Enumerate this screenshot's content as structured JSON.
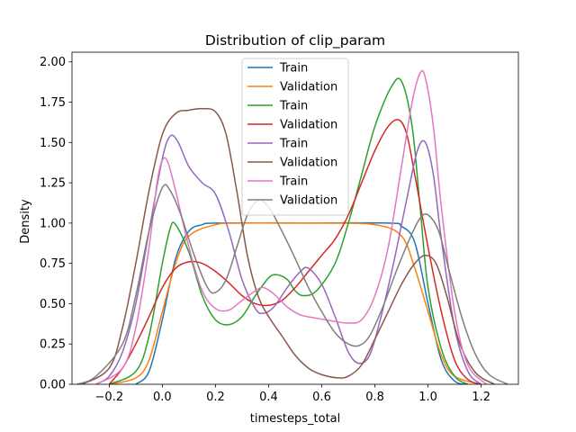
{
  "chart_data": {
    "type": "line",
    "title": "Distribution of clip_param",
    "xlabel": "timesteps_total",
    "ylabel": "Density",
    "xlim": [
      -0.34,
      1.34
    ],
    "ylim": [
      0,
      2.06
    ],
    "xticks": [
      "−0.2",
      "0.0",
      "0.2",
      "0.4",
      "0.6",
      "0.8",
      "1.0",
      "1.2"
    ],
    "xtick_values": [
      -0.2,
      0.0,
      0.2,
      0.4,
      0.6,
      0.8,
      1.0,
      1.2
    ],
    "yticks": [
      "0.00",
      "0.25",
      "0.50",
      "0.75",
      "1.00",
      "1.25",
      "1.50",
      "1.75",
      "2.00"
    ],
    "ytick_values": [
      0,
      0.25,
      0.5,
      0.75,
      1.0,
      1.25,
      1.5,
      1.75,
      2.0
    ],
    "grid": false,
    "legend_position": "top-center",
    "series": [
      {
        "name": "Train",
        "color": "#1f77b4",
        "points": [
          [
            -0.1,
            0.0
          ],
          [
            -0.05,
            0.08
          ],
          [
            0.0,
            0.4
          ],
          [
            0.05,
            0.78
          ],
          [
            0.1,
            0.95
          ],
          [
            0.15,
            0.99
          ],
          [
            0.2,
            1.0
          ],
          [
            0.5,
            1.0
          ],
          [
            0.85,
            1.0
          ],
          [
            0.9,
            0.98
          ],
          [
            0.95,
            0.88
          ],
          [
            1.0,
            0.5
          ],
          [
            1.05,
            0.15
          ],
          [
            1.1,
            0.02
          ],
          [
            1.15,
            0.0
          ]
        ]
      },
      {
        "name": "Validation",
        "color": "#ff7f0e",
        "points": [
          [
            -0.2,
            0.0
          ],
          [
            -0.1,
            0.04
          ],
          [
            -0.05,
            0.15
          ],
          [
            0.0,
            0.45
          ],
          [
            0.05,
            0.75
          ],
          [
            0.1,
            0.92
          ],
          [
            0.2,
            0.99
          ],
          [
            0.3,
            1.0
          ],
          [
            0.6,
            1.0
          ],
          [
            0.8,
            0.99
          ],
          [
            0.9,
            0.92
          ],
          [
            0.95,
            0.72
          ],
          [
            1.0,
            0.45
          ],
          [
            1.05,
            0.18
          ],
          [
            1.1,
            0.05
          ],
          [
            1.2,
            0.0
          ]
        ]
      },
      {
        "name": "Train",
        "color": "#2ca02c",
        "points": [
          [
            -0.2,
            0.0
          ],
          [
            -0.1,
            0.08
          ],
          [
            -0.05,
            0.3
          ],
          [
            0.0,
            0.75
          ],
          [
            0.03,
            0.97
          ],
          [
            0.05,
            0.99
          ],
          [
            0.1,
            0.82
          ],
          [
            0.15,
            0.55
          ],
          [
            0.2,
            0.4
          ],
          [
            0.25,
            0.37
          ],
          [
            0.3,
            0.42
          ],
          [
            0.35,
            0.55
          ],
          [
            0.4,
            0.66
          ],
          [
            0.43,
            0.68
          ],
          [
            0.47,
            0.65
          ],
          [
            0.5,
            0.58
          ],
          [
            0.53,
            0.55
          ],
          [
            0.58,
            0.58
          ],
          [
            0.65,
            0.75
          ],
          [
            0.7,
            1.0
          ],
          [
            0.75,
            1.3
          ],
          [
            0.8,
            1.6
          ],
          [
            0.86,
            1.84
          ],
          [
            0.9,
            1.88
          ],
          [
            0.94,
            1.6
          ],
          [
            0.97,
            1.1
          ],
          [
            1.0,
            0.6
          ],
          [
            1.05,
            0.22
          ],
          [
            1.1,
            0.05
          ],
          [
            1.15,
            0.0
          ]
        ]
      },
      {
        "name": "Validation",
        "color": "#d62728",
        "points": [
          [
            -0.2,
            0.0
          ],
          [
            -0.15,
            0.1
          ],
          [
            -0.1,
            0.25
          ],
          [
            -0.05,
            0.42
          ],
          [
            0.0,
            0.6
          ],
          [
            0.05,
            0.72
          ],
          [
            0.1,
            0.76
          ],
          [
            0.15,
            0.75
          ],
          [
            0.2,
            0.7
          ],
          [
            0.25,
            0.63
          ],
          [
            0.3,
            0.55
          ],
          [
            0.35,
            0.5
          ],
          [
            0.4,
            0.49
          ],
          [
            0.45,
            0.52
          ],
          [
            0.5,
            0.6
          ],
          [
            0.55,
            0.7
          ],
          [
            0.6,
            0.8
          ],
          [
            0.65,
            0.9
          ],
          [
            0.7,
            1.05
          ],
          [
            0.75,
            1.25
          ],
          [
            0.8,
            1.45
          ],
          [
            0.85,
            1.6
          ],
          [
            0.89,
            1.64
          ],
          [
            0.92,
            1.55
          ],
          [
            0.95,
            1.3
          ],
          [
            1.0,
            0.85
          ],
          [
            1.05,
            0.45
          ],
          [
            1.1,
            0.15
          ],
          [
            1.15,
            0.03
          ],
          [
            1.2,
            0.0
          ]
        ]
      },
      {
        "name": "Train",
        "color": "#9467bd",
        "points": [
          [
            -0.25,
            0.0
          ],
          [
            -0.2,
            0.05
          ],
          [
            -0.15,
            0.2
          ],
          [
            -0.1,
            0.5
          ],
          [
            -0.05,
            0.95
          ],
          [
            0.0,
            1.4
          ],
          [
            0.03,
            1.54
          ],
          [
            0.06,
            1.5
          ],
          [
            0.1,
            1.35
          ],
          [
            0.15,
            1.25
          ],
          [
            0.2,
            1.18
          ],
          [
            0.25,
            0.95
          ],
          [
            0.3,
            0.65
          ],
          [
            0.35,
            0.47
          ],
          [
            0.38,
            0.44
          ],
          [
            0.42,
            0.48
          ],
          [
            0.47,
            0.6
          ],
          [
            0.52,
            0.7
          ],
          [
            0.55,
            0.72
          ],
          [
            0.6,
            0.62
          ],
          [
            0.65,
            0.42
          ],
          [
            0.7,
            0.2
          ],
          [
            0.74,
            0.13
          ],
          [
            0.78,
            0.18
          ],
          [
            0.82,
            0.4
          ],
          [
            0.87,
            0.75
          ],
          [
            0.92,
            1.15
          ],
          [
            0.96,
            1.45
          ],
          [
            0.99,
            1.5
          ],
          [
            1.02,
            1.3
          ],
          [
            1.05,
            0.9
          ],
          [
            1.1,
            0.35
          ],
          [
            1.15,
            0.08
          ],
          [
            1.2,
            0.0
          ]
        ]
      },
      {
        "name": "Validation",
        "color": "#8c564b",
        "points": [
          [
            -0.3,
            0.0
          ],
          [
            -0.2,
            0.1
          ],
          [
            -0.15,
            0.35
          ],
          [
            -0.1,
            0.75
          ],
          [
            -0.05,
            1.2
          ],
          [
            0.0,
            1.55
          ],
          [
            0.05,
            1.68
          ],
          [
            0.1,
            1.7
          ],
          [
            0.15,
            1.71
          ],
          [
            0.2,
            1.69
          ],
          [
            0.24,
            1.55
          ],
          [
            0.28,
            1.2
          ],
          [
            0.32,
            0.8
          ],
          [
            0.36,
            0.55
          ],
          [
            0.4,
            0.42
          ],
          [
            0.45,
            0.3
          ],
          [
            0.5,
            0.18
          ],
          [
            0.55,
            0.1
          ],
          [
            0.6,
            0.06
          ],
          [
            0.66,
            0.04
          ],
          [
            0.7,
            0.05
          ],
          [
            0.75,
            0.12
          ],
          [
            0.8,
            0.28
          ],
          [
            0.85,
            0.45
          ],
          [
            0.9,
            0.62
          ],
          [
            0.95,
            0.75
          ],
          [
            0.99,
            0.8
          ],
          [
            1.03,
            0.75
          ],
          [
            1.07,
            0.55
          ],
          [
            1.12,
            0.25
          ],
          [
            1.18,
            0.07
          ],
          [
            1.25,
            0.0
          ]
        ]
      },
      {
        "name": "Train",
        "color": "#e377c2",
        "points": [
          [
            -0.25,
            0.0
          ],
          [
            -0.15,
            0.1
          ],
          [
            -0.1,
            0.35
          ],
          [
            -0.05,
            0.85
          ],
          [
            -0.02,
            1.25
          ],
          [
            0.0,
            1.39
          ],
          [
            0.02,
            1.38
          ],
          [
            0.05,
            1.2
          ],
          [
            0.1,
            0.85
          ],
          [
            0.15,
            0.58
          ],
          [
            0.2,
            0.47
          ],
          [
            0.25,
            0.46
          ],
          [
            0.3,
            0.52
          ],
          [
            0.35,
            0.58
          ],
          [
            0.38,
            0.6
          ],
          [
            0.42,
            0.56
          ],
          [
            0.47,
            0.48
          ],
          [
            0.52,
            0.43
          ],
          [
            0.58,
            0.41
          ],
          [
            0.65,
            0.39
          ],
          [
            0.7,
            0.38
          ],
          [
            0.75,
            0.4
          ],
          [
            0.8,
            0.55
          ],
          [
            0.85,
            0.85
          ],
          [
            0.9,
            1.35
          ],
          [
            0.94,
            1.75
          ],
          [
            0.97,
            1.93
          ],
          [
            0.99,
            1.9
          ],
          [
            1.02,
            1.6
          ],
          [
            1.05,
            1.1
          ],
          [
            1.1,
            0.45
          ],
          [
            1.15,
            0.12
          ],
          [
            1.22,
            0.0
          ]
        ]
      },
      {
        "name": "Validation",
        "color": "#7f7f7f",
        "points": [
          [
            -0.32,
            0.0
          ],
          [
            -0.25,
            0.05
          ],
          [
            -0.15,
            0.25
          ],
          [
            -0.1,
            0.55
          ],
          [
            -0.05,
            0.95
          ],
          [
            0.0,
            1.22
          ],
          [
            0.03,
            1.2
          ],
          [
            0.07,
            1.05
          ],
          [
            0.12,
            0.8
          ],
          [
            0.17,
            0.6
          ],
          [
            0.2,
            0.57
          ],
          [
            0.24,
            0.65
          ],
          [
            0.28,
            0.85
          ],
          [
            0.32,
            1.05
          ],
          [
            0.36,
            1.14
          ],
          [
            0.4,
            1.1
          ],
          [
            0.45,
            0.95
          ],
          [
            0.5,
            0.78
          ],
          [
            0.55,
            0.6
          ],
          [
            0.6,
            0.45
          ],
          [
            0.65,
            0.32
          ],
          [
            0.7,
            0.25
          ],
          [
            0.74,
            0.24
          ],
          [
            0.78,
            0.3
          ],
          [
            0.83,
            0.48
          ],
          [
            0.88,
            0.7
          ],
          [
            0.93,
            0.9
          ],
          [
            0.97,
            1.03
          ],
          [
            1.0,
            1.05
          ],
          [
            1.04,
            0.95
          ],
          [
            1.08,
            0.7
          ],
          [
            1.13,
            0.4
          ],
          [
            1.18,
            0.18
          ],
          [
            1.23,
            0.06
          ],
          [
            1.3,
            0.0
          ]
        ]
      }
    ]
  }
}
